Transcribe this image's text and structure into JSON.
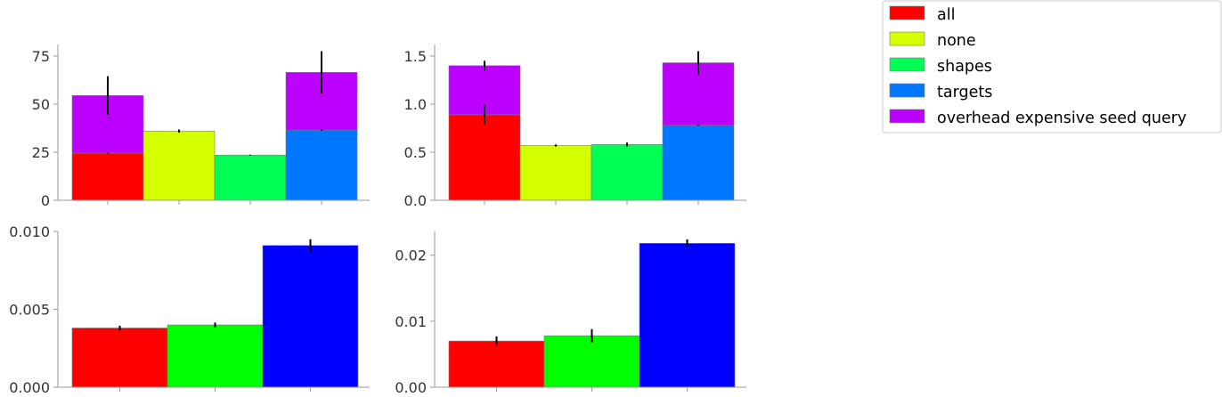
{
  "chart_data": [
    {
      "type": "bar",
      "stacked": true,
      "categories": [
        "all",
        "none",
        "shapes",
        "targets"
      ],
      "series": [
        {
          "name": "",
          "values": [
            24.5,
            36.0,
            23.5,
            36.5
          ],
          "colors": [
            "#ff0000",
            "#d4ff00",
            "#00ff55",
            "#0077ff"
          ],
          "err": [
            0.3,
            0.8,
            0.2,
            0.3
          ]
        },
        {
          "name": "overhead expensive seed query",
          "values": [
            30.0,
            0,
            0,
            30.0
          ],
          "color": "#bb00ff",
          "err": [
            10.0,
            0,
            0,
            11.0
          ]
        }
      ],
      "ylim": [
        0,
        81
      ],
      "yticks": [
        0,
        25,
        50,
        75
      ],
      "ytick_labels": [
        "0",
        "25",
        "50",
        "75"
      ]
    },
    {
      "type": "bar",
      "stacked": true,
      "categories": [
        "all",
        "none",
        "shapes",
        "targets"
      ],
      "series": [
        {
          "name": "",
          "values": [
            0.89,
            0.57,
            0.58,
            0.78
          ],
          "colors": [
            "#ff0000",
            "#d4ff00",
            "#00ff55",
            "#0077ff"
          ],
          "err": [
            0.1,
            0.01,
            0.02,
            0.005
          ]
        },
        {
          "name": "overhead expensive seed query",
          "values": [
            0.51,
            0,
            0,
            0.65
          ],
          "color": "#bb00ff",
          "err": [
            0.05,
            0,
            0,
            0.12
          ]
        }
      ],
      "ylim": [
        0,
        1.62
      ],
      "yticks": [
        0.0,
        0.5,
        1.0,
        1.5
      ],
      "ytick_labels": [
        "0.0",
        "0.5",
        "1.0",
        "1.5"
      ]
    },
    {
      "type": "bar",
      "categories": [
        "all",
        "shapes",
        "targets"
      ],
      "values": [
        0.0038,
        0.004,
        0.0091
      ],
      "colors": [
        "#ff0000",
        "#00ff00",
        "#0000ff"
      ],
      "err": [
        0.00015,
        0.00015,
        0.0004
      ],
      "ylim": [
        0,
        0.01
      ],
      "yticks": [
        0.0,
        0.005,
        0.01
      ],
      "ytick_labels": [
        "0.000",
        "0.005",
        "0.010"
      ]
    },
    {
      "type": "bar",
      "categories": [
        "all",
        "shapes",
        "targets"
      ],
      "values": [
        0.007,
        0.0078,
        0.0218
      ],
      "colors": [
        "#ff0000",
        "#00ff00",
        "#0000ff"
      ],
      "err": [
        0.0007,
        0.001,
        0.0006
      ],
      "ylim": [
        0,
        0.0236
      ],
      "yticks": [
        0.0,
        0.01,
        0.02
      ],
      "ytick_labels": [
        "0.00",
        "0.01",
        "0.02"
      ]
    }
  ],
  "legend": {
    "placement": "top-right",
    "entries": [
      {
        "label": "all",
        "color": "#ff0000"
      },
      {
        "label": "none",
        "color": "#d4ff00"
      },
      {
        "label": "shapes",
        "color": "#00ff55"
      },
      {
        "label": "targets",
        "color": "#0077ff"
      },
      {
        "label": "overhead expensive seed query",
        "color": "#bb00ff"
      }
    ]
  },
  "colors": {
    "axis": "#999999",
    "tick_text": "#333333",
    "error_bar": "#000000"
  }
}
